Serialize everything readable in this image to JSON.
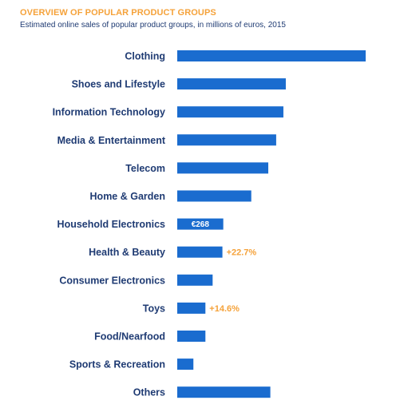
{
  "header": {
    "title": "OVERVIEW OF POPULAR PRODUCT GROUPS",
    "subtitle": "Estimated online sales of popular product groups, in millions of euros, 2015"
  },
  "colors": {
    "bar": "#1a6ccf",
    "title": "#f5a23a",
    "label": "#1f3b73",
    "growth": "#f5a23a"
  },
  "chart_data": {
    "type": "bar",
    "orientation": "horizontal",
    "title": "OVERVIEW OF POPULAR PRODUCT GROUPS",
    "subtitle": "Estimated online sales of popular product groups, in millions of euros, 2015",
    "unit": "millions of euros",
    "categories": [
      "Clothing",
      "Shoes and Lifestyle",
      "Information Technology",
      "Media & Entertainment",
      "Telecom",
      "Home & Garden",
      "Household Electronics",
      "Health & Beauty",
      "Consumer Electronics",
      "Toys",
      "Food/Nearfood",
      "Sports & Recreation",
      "Others"
    ],
    "values": [
      1097,
      632,
      618,
      576,
      530,
      431,
      268,
      263,
      206,
      164,
      164,
      94,
      542
    ],
    "bar_labels": [
      "",
      "",
      "",
      "",
      "",
      "",
      "€268",
      "",
      "",
      "",
      "",
      "",
      ""
    ],
    "annotations": [
      "",
      "",
      "",
      "",
      "",
      "",
      "",
      "+22.7%",
      "",
      "+14.6%",
      "",
      "",
      ""
    ],
    "xlim": [
      0,
      1097
    ],
    "axes_visible": false,
    "grid": false
  }
}
